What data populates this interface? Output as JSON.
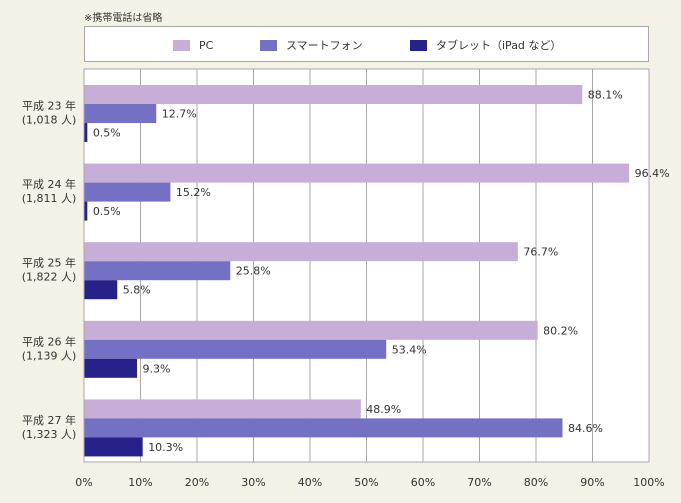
{
  "note": "※携帯電話は省略",
  "chart_data": {
    "type": "bar",
    "orientation": "horizontal",
    "categories": [
      {
        "line1": "平成 23 年",
        "line2": "(1,018 人)"
      },
      {
        "line1": "平成 24 年",
        "line2": "(1,811 人)"
      },
      {
        "line1": "平成 25 年",
        "line2": "(1,822 人)"
      },
      {
        "line1": "平成 26 年",
        "line2": "(1,139 人)"
      },
      {
        "line1": "平成 27 年",
        "line2": "(1,323 人)"
      }
    ],
    "series": [
      {
        "name": "PC",
        "color": "#c6aed8",
        "values": [
          88.1,
          96.4,
          76.7,
          80.2,
          48.9
        ],
        "labels": [
          "88.1%",
          "96.4%",
          "76.7%",
          "80.2%",
          "48.9%"
        ]
      },
      {
        "name": "スマートフォン",
        "color": "#7470c4",
        "values": [
          12.7,
          15.2,
          25.8,
          53.4,
          84.6
        ],
        "labels": [
          "12.7%",
          "15.2%",
          "25.8%",
          "53.4%",
          "84.6%"
        ]
      },
      {
        "name": "タブレット（iPad など）",
        "color": "#27228a",
        "values": [
          0.5,
          0.5,
          5.8,
          9.3,
          10.3
        ],
        "labels": [
          "0.5%",
          "0.5%",
          "5.8%",
          "9.3%",
          "10.3%"
        ]
      }
    ],
    "xlim": [
      0,
      100
    ],
    "xticks": [
      0,
      10,
      20,
      30,
      40,
      50,
      60,
      70,
      80,
      90,
      100
    ],
    "xtick_labels": [
      "0%",
      "10%",
      "20%",
      "30%",
      "40%",
      "50%",
      "60%",
      "70%",
      "80%",
      "90%",
      "100%"
    ],
    "grid": true,
    "legend": "top"
  }
}
